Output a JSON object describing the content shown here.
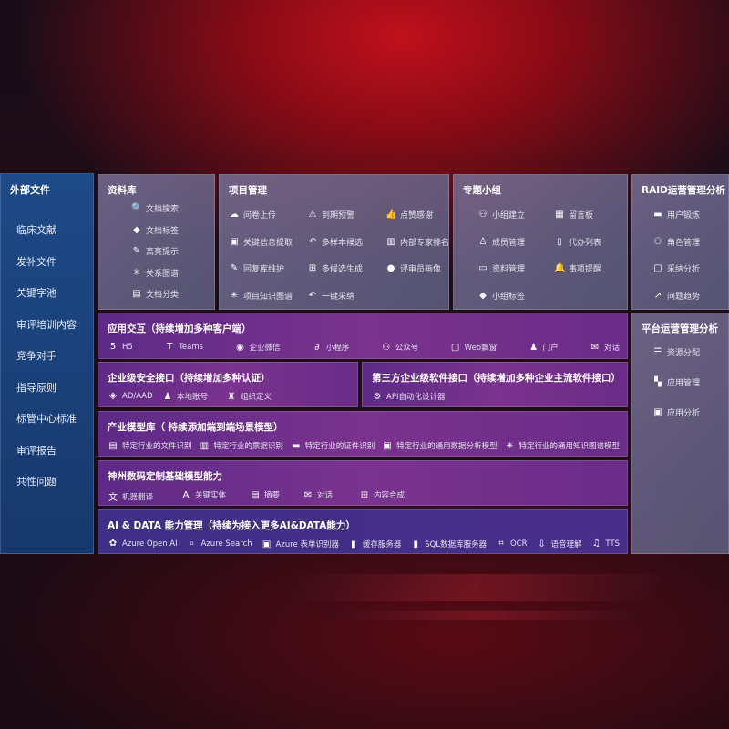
{
  "left": {
    "title": "外部文件",
    "items": [
      "临床文献",
      "发补文件",
      "关键字池",
      "审评培训内容",
      "竞争对手",
      "指导原则",
      "标管中心标准",
      "审评报告",
      "共性问题"
    ]
  },
  "library": {
    "title": "资料库",
    "items": [
      [
        "document-search-icon",
        "文档搜索"
      ],
      [
        "tag-icon",
        "文档标签"
      ],
      [
        "highlight-pen-icon",
        "高亮提示"
      ],
      [
        "graph-icon",
        "关系图谱"
      ],
      [
        "document-classify-icon",
        "文档分类"
      ]
    ]
  },
  "project": {
    "title": "项目管理",
    "items": [
      [
        "cloud-upload-icon",
        "问卷上传"
      ],
      [
        "alarm-icon",
        "到期预警"
      ],
      [
        "thumbs-up-icon",
        "点赞感谢"
      ],
      [
        "extract-icon",
        "关键信息提取"
      ],
      [
        "reply-icon",
        "多样本候选"
      ],
      [
        "ranking-icon",
        "内部专家排名"
      ],
      [
        "pen-icon",
        "回复库维护"
      ],
      [
        "puzzle-icon",
        "多候选生成"
      ],
      [
        "user-icon",
        "评审员画像"
      ],
      [
        "graph-icon",
        "项目知识图谱"
      ],
      [
        "reply-icon",
        "一键采纳"
      ]
    ]
  },
  "group": {
    "title": "专题小组",
    "items": [
      [
        "group-icon",
        "小组建立"
      ],
      [
        "bbs-icon",
        "留言板"
      ],
      [
        "member-icon",
        "成员管理"
      ],
      [
        "clipboard-icon",
        "代办列表"
      ],
      [
        "folder-icon",
        "资料管理"
      ],
      [
        "bell-icon",
        "事项提醒"
      ],
      [
        "tag-icon",
        "小组标签"
      ]
    ]
  },
  "raid": {
    "title": "RAID运营管理分析",
    "items": [
      [
        "id-card-icon",
        "用户锻炼"
      ],
      [
        "users-icon",
        "角色管理"
      ],
      [
        "qa-icon",
        "采纳分析"
      ],
      [
        "trend-icon",
        "问题趋势"
      ]
    ]
  },
  "platform": {
    "title": "平台运营管理分析",
    "items": [
      [
        "checklist-icon",
        "资源分配"
      ],
      [
        "apps-icon",
        "应用管理"
      ],
      [
        "analysis-icon",
        "应用分析"
      ]
    ]
  },
  "app": {
    "title": "应用交互（持续增加多种客户端）",
    "items": [
      [
        "html5-icon",
        "H5"
      ],
      [
        "teams-icon",
        "Teams"
      ],
      [
        "wechat-icon",
        "企业微信"
      ],
      [
        "miniprogram-icon",
        "小程序"
      ],
      [
        "public-account-icon",
        "公众号"
      ],
      [
        "window-icon",
        "Web飘窗"
      ],
      [
        "portal-icon",
        "门户"
      ],
      [
        "chat-icon",
        "对话"
      ]
    ]
  },
  "security": {
    "title": "企业级安全接口（持续增加多种认证）",
    "items": [
      [
        "ad-icon",
        "AD/AAD"
      ],
      [
        "local-account-icon",
        "本地账号"
      ],
      [
        "org-icon",
        "组织定义"
      ]
    ]
  },
  "third": {
    "title": "第三方企业级软件接口（持续增加多种企业主流软件接口）",
    "items": [
      [
        "gear-icon",
        "API自动化设计器"
      ]
    ]
  },
  "industry": {
    "title": "产业模型库（ 持续添加端到端场景模型）",
    "items": [
      [
        "file-icon",
        "特定行业的文件识别"
      ],
      [
        "receipt-icon",
        "特定行业的票据识别"
      ],
      [
        "id-card-icon",
        "特定行业的证件识别"
      ],
      [
        "chart-icon",
        "特定行业的通用数据分析模型"
      ],
      [
        "graph-icon",
        "特定行业的通用知识图谱模型"
      ]
    ]
  },
  "base": {
    "title": "神州数码定制基础模型能力",
    "items": [
      [
        "translate-icon",
        "机器翻译"
      ],
      [
        "entity-icon",
        "关键实体"
      ],
      [
        "summary-icon",
        "摘要"
      ],
      [
        "chat-icon",
        "对话"
      ],
      [
        "compose-icon",
        "内容合成"
      ]
    ]
  },
  "ai": {
    "title": "AI & DATA 能力管理（持续为接入更多AI&DATA能力）",
    "items": [
      [
        "openai-icon",
        "Azure Open AI"
      ],
      [
        "search-icon",
        "Azure Search"
      ],
      [
        "form-icon",
        "Azure 表单识别器"
      ],
      [
        "cache-icon",
        "缓存服务器"
      ],
      [
        "sql-icon",
        "SQL数据库服务器"
      ],
      [
        "ocr-icon",
        "OCR"
      ],
      [
        "speech-icon",
        "语音理解"
      ],
      [
        "tts-icon",
        "TTS"
      ]
    ]
  }
}
